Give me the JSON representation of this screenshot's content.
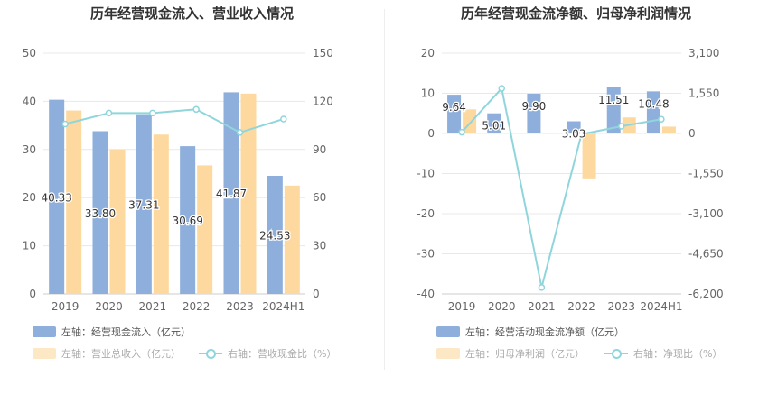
{
  "colors": {
    "bar_primary": "#8eaedb",
    "bar_secondary": "#fdd9a0",
    "line": "#8fd6dc",
    "axis_text": "#666666",
    "grid": "#e8e8e8"
  },
  "chart_data": [
    {
      "type": "bar",
      "title": "历年经营现金流入、营业收入情况",
      "categories": [
        "2019",
        "2020",
        "2021",
        "2022",
        "2023",
        "2024H1"
      ],
      "ylim_left": [
        0,
        50
      ],
      "left_ticks": [
        "0",
        "10",
        "20",
        "30",
        "40",
        "50"
      ],
      "ylim_right": [
        0,
        150
      ],
      "right_ticks": [
        "0",
        "30",
        "60",
        "90",
        "120",
        "150"
      ],
      "grid": true,
      "series": [
        {
          "name": "左轴：经营现金流入（亿元）",
          "kind": "bar",
          "axis": "left",
          "values": [
            40.33,
            33.8,
            37.31,
            30.69,
            41.87,
            24.53
          ],
          "labels": [
            "40.33",
            "33.80",
            "37.31",
            "30.69",
            "41.87",
            "24.53"
          ]
        },
        {
          "name": "左轴：营业总收入（亿元）",
          "kind": "bar",
          "axis": "left",
          "values": [
            38.1,
            30.0,
            33.1,
            26.7,
            41.6,
            22.5
          ]
        },
        {
          "name": "右轴：营收现金比（%）",
          "kind": "line",
          "axis": "right",
          "values": [
            105.9,
            112.7,
            112.7,
            115.0,
            100.6,
            109.0
          ]
        }
      ]
    },
    {
      "type": "bar",
      "title": "历年经营现金流净额、归母净利润情况",
      "categories": [
        "2019",
        "2020",
        "2021",
        "2022",
        "2023",
        "2024H1"
      ],
      "ylim_left": [
        -40,
        20
      ],
      "left_ticks": [
        "-40",
        "-30",
        "-20",
        "-10",
        "0",
        "10",
        "20"
      ],
      "ylim_right": [
        -6200,
        3100
      ],
      "right_ticks": [
        "-6,200",
        "-4,650",
        "-3,100",
        "-1,550",
        "0",
        "1,550",
        "3,100"
      ],
      "grid": true,
      "series": [
        {
          "name": "左轴：经营活动现金流净额（亿元）",
          "kind": "bar",
          "axis": "left",
          "values": [
            9.64,
            5.01,
            9.9,
            3.03,
            11.51,
            10.48
          ],
          "labels": [
            "9.64",
            "5.01",
            "9.90",
            "3.03",
            "11.51",
            "10.48"
          ]
        },
        {
          "name": "左轴：归母净利润（亿元）",
          "kind": "bar",
          "axis": "left",
          "values": [
            6.0,
            0.15,
            0.1,
            -11.2,
            4.0,
            1.7
          ]
        },
        {
          "name": "右轴：净现比（%）",
          "kind": "line",
          "axis": "right",
          "values": [
            50,
            1740,
            -5950,
            -30,
            280,
            550
          ]
        }
      ]
    }
  ]
}
